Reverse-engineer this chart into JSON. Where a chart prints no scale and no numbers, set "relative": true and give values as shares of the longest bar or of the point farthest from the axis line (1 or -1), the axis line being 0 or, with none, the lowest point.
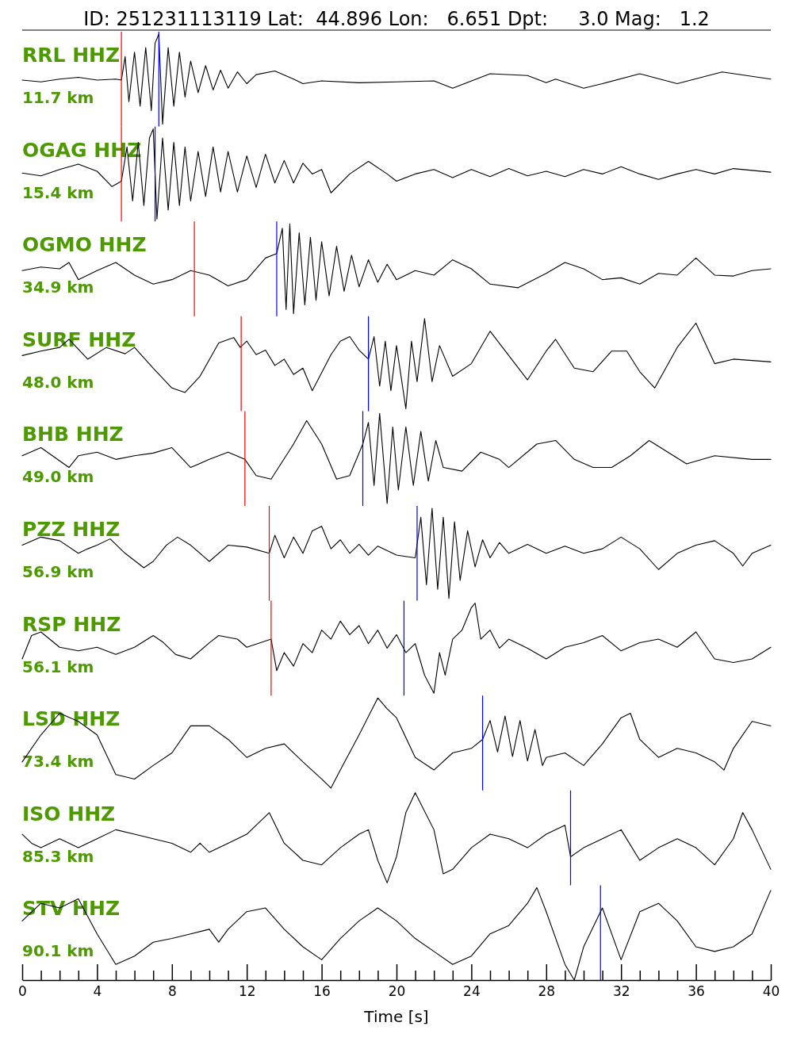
{
  "chart_data": [
    {
      "type": "line",
      "relative": true,
      "title": "RRL HHZ",
      "subtitle": "11.7 km",
      "annotations": [
        "ID: 251231113119 Lat:  44.896 Lon:   6.651 Dpt:     3.0 Mag:   1.2"
      ],
      "xlim": [
        0,
        40
      ],
      "tick_labels": false,
      "ref_lines": [
        {
          "axis": "x",
          "value": 5.3,
          "color": "#ff0000"
        },
        {
          "axis": "x",
          "value": 7.3,
          "color": "#0000ff"
        }
      ],
      "x": [
        0,
        1,
        2,
        3,
        4,
        5,
        5.3,
        5.5,
        5.7,
        6.0,
        6.3,
        6.6,
        6.9,
        7.1,
        7.3,
        7.5,
        7.8,
        8.1,
        8.4,
        8.7,
        9.0,
        9.4,
        9.8,
        10.2,
        10.6,
        11,
        11.5,
        12,
        12.5,
        13.5,
        14.5,
        15,
        16,
        18,
        20,
        22,
        23,
        25,
        27,
        28,
        28.5,
        30,
        31,
        33,
        35,
        37.4,
        40
      ],
      "series": [
        {
          "color": "#000000",
          "values": [
            0.49,
            0.47,
            0.5,
            0.52,
            0.49,
            0.5,
            0.49,
            0.75,
            0.25,
            0.8,
            0.2,
            0.85,
            0.15,
            0.9,
            1.0,
            0.0,
            0.85,
            0.2,
            0.8,
            0.3,
            0.7,
            0.35,
            0.65,
            0.38,
            0.6,
            0.4,
            0.58,
            0.45,
            0.55,
            0.59,
            0.5,
            0.45,
            0.48,
            0.46,
            0.47,
            0.48,
            0.4,
            0.56,
            0.54,
            0.46,
            0.5,
            0.4,
            0.45,
            0.56,
            0.45,
            0.58,
            0.5
          ]
        }
      ]
    },
    {
      "type": "line",
      "relative": true,
      "title": "OGAG HHZ",
      "subtitle": "15.4 km",
      "xlim": [
        0,
        40
      ],
      "tick_labels": false,
      "ref_lines": [
        {
          "axis": "x",
          "value": 5.3,
          "color": "#ff0000"
        },
        {
          "axis": "x",
          "value": 7.1,
          "color": "#0000ff"
        }
      ],
      "x": [
        0,
        1,
        2,
        3,
        4,
        4.8,
        5.3,
        5.6,
        5.9,
        6.2,
        6.5,
        6.8,
        7.0,
        7.2,
        7.5,
        7.8,
        8.1,
        8.4,
        8.7,
        9.0,
        9.4,
        9.8,
        10.2,
        10.6,
        11,
        11.5,
        12,
        12.5,
        13,
        13.5,
        14,
        14.5,
        15,
        15.5,
        16,
        16.5,
        17.5,
        18.5,
        19.5,
        20,
        21,
        22,
        23,
        24,
        25,
        26,
        27,
        28,
        29,
        30,
        31,
        32,
        33,
        34,
        35,
        36,
        37,
        38,
        39,
        40
      ],
      "series": [
        {
          "color": "#000000",
          "values": [
            0.51,
            0.48,
            0.55,
            0.61,
            0.53,
            0.36,
            0.42,
            0.8,
            0.2,
            0.85,
            0.15,
            0.9,
            1.0,
            0.0,
            0.9,
            0.1,
            0.85,
            0.15,
            0.8,
            0.2,
            0.75,
            0.25,
            0.8,
            0.3,
            0.75,
            0.3,
            0.7,
            0.35,
            0.72,
            0.4,
            0.65,
            0.4,
            0.62,
            0.5,
            0.55,
            0.29,
            0.5,
            0.64,
            0.5,
            0.42,
            0.5,
            0.55,
            0.46,
            0.55,
            0.47,
            0.56,
            0.48,
            0.53,
            0.47,
            0.55,
            0.5,
            0.58,
            0.5,
            0.44,
            0.5,
            0.55,
            0.5,
            0.56,
            0.54,
            0.52
          ]
        }
      ]
    },
    {
      "type": "line",
      "relative": true,
      "title": "OGMO HHZ",
      "subtitle": "34.9 km",
      "xlim": [
        0,
        40
      ],
      "tick_labels": false,
      "ref_lines": [
        {
          "axis": "x",
          "value": 9.2,
          "color": "#ff0000"
        },
        {
          "axis": "x",
          "value": 13.6,
          "color": "#0000ff"
        }
      ],
      "x": [
        0,
        1,
        2,
        2.5,
        3,
        4,
        5,
        6,
        7,
        8,
        9,
        10,
        11,
        12,
        13,
        13.6,
        13.9,
        14.1,
        14.3,
        14.5,
        14.8,
        15.1,
        15.4,
        15.7,
        16,
        16.4,
        16.8,
        17.2,
        17.6,
        18,
        18.5,
        19,
        19.5,
        20,
        21,
        22,
        23,
        24,
        25,
        26.5,
        28,
        29,
        30,
        31,
        32,
        33,
        34,
        35,
        36,
        37,
        38,
        39,
        40
      ],
      "series": [
        {
          "color": "#000000",
          "values": [
            0.48,
            0.52,
            0.5,
            0.57,
            0.38,
            0.48,
            0.57,
            0.43,
            0.33,
            0.38,
            0.48,
            0.43,
            0.31,
            0.38,
            0.62,
            0.67,
            0.95,
            0.05,
            1.0,
            0.0,
            0.9,
            0.1,
            0.85,
            0.15,
            0.8,
            0.2,
            0.75,
            0.25,
            0.65,
            0.3,
            0.6,
            0.35,
            0.55,
            0.38,
            0.48,
            0.43,
            0.6,
            0.5,
            0.33,
            0.29,
            0.45,
            0.57,
            0.5,
            0.38,
            0.4,
            0.33,
            0.45,
            0.43,
            0.62,
            0.43,
            0.42,
            0.48,
            0.5
          ]
        }
      ]
    },
    {
      "type": "line",
      "relative": true,
      "title": "SURF HHZ",
      "subtitle": "48.0 km",
      "xlim": [
        0,
        40
      ],
      "tick_labels": false,
      "ref_lines": [
        {
          "axis": "x",
          "value": 11.7,
          "color": "#ff0000"
        },
        {
          "axis": "x",
          "value": 18.5,
          "color": "#0000ff"
        }
      ],
      "x": [
        0,
        1,
        2,
        2.5,
        3.5,
        4.5,
        5.5,
        6,
        7,
        8,
        8.7,
        9.5,
        10.5,
        11.3,
        11.65,
        12,
        12.5,
        13,
        13.5,
        14,
        14.5,
        15,
        15.5,
        16,
        16.5,
        17,
        17.5,
        18,
        18.5,
        18.8,
        19.1,
        19.4,
        19.7,
        20,
        20.5,
        20.8,
        21.1,
        21.5,
        21.9,
        22.3,
        23,
        24,
        25,
        26,
        27,
        28,
        28.5,
        29.5,
        30.5,
        31.5,
        32.3,
        33,
        33.8,
        35,
        36,
        37,
        38,
        40
      ],
      "series": [
        {
          "color": "#000000",
          "values": [
            0.59,
            0.64,
            0.68,
            0.77,
            0.55,
            0.68,
            0.61,
            0.68,
            0.45,
            0.23,
            0.18,
            0.36,
            0.73,
            0.79,
            0.68,
            0.75,
            0.6,
            0.65,
            0.48,
            0.55,
            0.38,
            0.45,
            0.2,
            0.4,
            0.6,
            0.75,
            0.8,
            0.65,
            0.55,
            0.8,
            0.25,
            0.75,
            0.2,
            0.7,
            0.0,
            0.75,
            0.3,
            1.0,
            0.3,
            0.7,
            0.36,
            0.5,
            0.86,
            0.59,
            0.32,
            0.64,
            0.77,
            0.45,
            0.41,
            0.64,
            0.64,
            0.41,
            0.23,
            0.68,
            0.95,
            0.5,
            0.55,
            0.52
          ]
        }
      ]
    },
    {
      "type": "line",
      "relative": true,
      "title": "BHB HHZ",
      "subtitle": "49.0 km",
      "xlim": [
        0,
        40
      ],
      "tick_labels": false,
      "ref_lines": [
        {
          "axis": "x",
          "value": 11.9,
          "color": "#ff0000"
        },
        {
          "axis": "x",
          "value": 18.2,
          "color": "#0000ff"
        }
      ],
      "x": [
        0,
        1,
        2.5,
        3,
        4,
        5,
        6,
        7,
        8,
        9,
        10,
        11,
        11.9,
        12.5,
        13.3,
        14.5,
        15.2,
        16,
        16.8,
        17.5,
        18.2,
        18.5,
        18.8,
        19.1,
        19.5,
        19.8,
        20.1,
        20.5,
        20.9,
        21.3,
        21.7,
        22.1,
        22.5,
        23.5,
        24.5,
        25.5,
        26,
        27.5,
        28.5,
        29.5,
        30.5,
        31.5,
        32.5,
        33.5,
        34.5,
        35.5,
        37,
        39,
        40
      ],
      "series": [
        {
          "color": "#000000",
          "values": [
            0.53,
            0.62,
            0.4,
            0.53,
            0.57,
            0.49,
            0.53,
            0.56,
            0.62,
            0.4,
            0.49,
            0.57,
            0.49,
            0.31,
            0.27,
            0.66,
            0.92,
            0.66,
            0.27,
            0.31,
            0.66,
            0.9,
            0.2,
            1.0,
            0.0,
            0.85,
            0.15,
            0.85,
            0.2,
            0.8,
            0.25,
            0.7,
            0.4,
            0.36,
            0.57,
            0.49,
            0.4,
            0.66,
            0.7,
            0.49,
            0.4,
            0.4,
            0.53,
            0.7,
            0.57,
            0.44,
            0.53,
            0.49,
            0.49
          ]
        }
      ]
    },
    {
      "type": "line",
      "relative": true,
      "title": "PZZ HHZ",
      "subtitle": "56.9 km",
      "xlim": [
        0,
        40
      ],
      "tick_labels": false,
      "ref_lines": [
        {
          "axis": "x",
          "value": 13.2,
          "color": "#ff0000"
        },
        {
          "axis": "x",
          "value": 21.1,
          "color": "#0000ff"
        }
      ],
      "x": [
        0,
        1,
        2,
        3,
        3.5,
        4,
        4.7,
        5.5,
        6.5,
        7,
        7.7,
        8.3,
        9,
        10,
        11,
        12,
        13.2,
        13.5,
        14,
        14.5,
        15,
        15.5,
        16,
        16.5,
        17,
        17.5,
        18,
        18.5,
        19,
        20,
        21,
        21.3,
        21.6,
        21.9,
        22.2,
        22.5,
        22.8,
        23.1,
        23.4,
        23.8,
        24.2,
        24.6,
        25,
        25.5,
        26,
        27,
        28,
        29,
        30,
        31,
        32,
        33,
        34,
        35,
        36,
        37,
        38,
        38.5,
        39,
        40
      ],
      "series": [
        {
          "color": "#000000",
          "values": [
            0.59,
            0.68,
            0.64,
            0.5,
            0.55,
            0.59,
            0.66,
            0.5,
            0.34,
            0.41,
            0.59,
            0.68,
            0.59,
            0.41,
            0.59,
            0.57,
            0.5,
            0.7,
            0.45,
            0.68,
            0.5,
            0.75,
            0.8,
            0.55,
            0.65,
            0.5,
            0.6,
            0.48,
            0.58,
            0.48,
            0.45,
            0.9,
            0.15,
            1.0,
            0.1,
            0.9,
            0.0,
            0.85,
            0.2,
            0.75,
            0.35,
            0.65,
            0.45,
            0.62,
            0.5,
            0.6,
            0.5,
            0.58,
            0.5,
            0.55,
            0.68,
            0.55,
            0.32,
            0.5,
            0.59,
            0.64,
            0.5,
            0.36,
            0.5,
            0.59
          ]
        }
      ]
    },
    {
      "type": "line",
      "relative": true,
      "title": "RSP HHZ",
      "subtitle": "56.1 km",
      "xlim": [
        0,
        40
      ],
      "tick_labels": false,
      "ref_lines": [
        {
          "axis": "x",
          "value": 13.3,
          "color": "#ff0000"
        },
        {
          "axis": "x",
          "value": 20.4,
          "color": "#0000ff"
        }
      ],
      "x": [
        0,
        0.5,
        1,
        2,
        3,
        4,
        5,
        6,
        7,
        7.5,
        8.2,
        9,
        10,
        10.5,
        11.5,
        12,
        13.3,
        13.6,
        14,
        14.5,
        15,
        15.5,
        16,
        16.5,
        17,
        17.5,
        18,
        18.5,
        19,
        19.5,
        20,
        20.5,
        21,
        21.5,
        22,
        22.3,
        22.6,
        23,
        23.5,
        24,
        24.2,
        24.5,
        25,
        25.5,
        26,
        27,
        28,
        29,
        30,
        31,
        32,
        33,
        34,
        35,
        36,
        37,
        38,
        39,
        40
      ],
      "series": [
        {
          "color": "#000000",
          "values": [
            0.38,
            0.64,
            0.68,
            0.51,
            0.47,
            0.51,
            0.43,
            0.51,
            0.64,
            0.57,
            0.43,
            0.38,
            0.56,
            0.64,
            0.6,
            0.51,
            0.6,
            0.25,
            0.45,
            0.3,
            0.55,
            0.45,
            0.7,
            0.6,
            0.8,
            0.65,
            0.75,
            0.55,
            0.7,
            0.5,
            0.65,
            0.45,
            0.55,
            0.2,
            0.0,
            0.45,
            0.2,
            0.6,
            0.7,
            0.95,
            1.0,
            0.6,
            0.7,
            0.5,
            0.6,
            0.5,
            0.38,
            0.51,
            0.56,
            0.64,
            0.47,
            0.56,
            0.6,
            0.51,
            0.68,
            0.38,
            0.34,
            0.38,
            0.51
          ]
        }
      ]
    },
    {
      "type": "line",
      "relative": true,
      "title": "LSD HHZ",
      "subtitle": "73.4 km",
      "xlim": [
        0,
        40
      ],
      "tick_labels": false,
      "ref_lines": [
        {
          "axis": "x",
          "value": 24.6,
          "color": "#0000ff"
        }
      ],
      "x": [
        0,
        1,
        2,
        3,
        4,
        5,
        6,
        7,
        8,
        9,
        10,
        11,
        12,
        13,
        14,
        15,
        16,
        16.5,
        17,
        18,
        19,
        19.5,
        20,
        21,
        22,
        23,
        24,
        24.6,
        25,
        25.4,
        25.8,
        26.2,
        26.6,
        27,
        27.4,
        27.8,
        28,
        29,
        30,
        31,
        32,
        32.5,
        33,
        34,
        35,
        36,
        37,
        37.5,
        38,
        39,
        40
      ],
      "series": [
        {
          "color": "#000000",
          "values": [
            0.29,
            0.59,
            0.83,
            0.74,
            0.59,
            0.15,
            0.1,
            0.25,
            0.39,
            0.69,
            0.69,
            0.54,
            0.34,
            0.44,
            0.49,
            0.29,
            0.1,
            0.0,
            0.2,
            0.59,
            1.0,
            0.88,
            0.78,
            0.34,
            0.2,
            0.39,
            0.44,
            0.54,
            0.75,
            0.4,
            0.8,
            0.35,
            0.75,
            0.3,
            0.65,
            0.25,
            0.34,
            0.39,
            0.25,
            0.49,
            0.78,
            0.83,
            0.54,
            0.34,
            0.44,
            0.39,
            0.29,
            0.2,
            0.44,
            0.74,
            0.69
          ]
        }
      ]
    },
    {
      "type": "line",
      "relative": true,
      "title": "ISO HHZ",
      "subtitle": "85.3 km",
      "xlim": [
        0,
        40
      ],
      "tick_labels": false,
      "ref_lines": [
        {
          "axis": "x",
          "value": 29.3,
          "color": "#0000ff"
        }
      ],
      "x": [
        0,
        0.5,
        1,
        2,
        3,
        4,
        5,
        6,
        7,
        8,
        9,
        9.5,
        10,
        11,
        12,
        13.2,
        14,
        15,
        16,
        17,
        18,
        18.5,
        19,
        19.5,
        20,
        20.5,
        21,
        22,
        22.5,
        23,
        24,
        25,
        26,
        27,
        28,
        29,
        29.3,
        30,
        31,
        32,
        33,
        34,
        35,
        36,
        37,
        38,
        38.5,
        39,
        40
      ],
      "series": [
        {
          "color": "#000000",
          "values": [
            0.54,
            0.44,
            0.39,
            0.49,
            0.39,
            0.49,
            0.59,
            0.54,
            0.49,
            0.44,
            0.34,
            0.44,
            0.34,
            0.44,
            0.54,
            0.78,
            0.44,
            0.25,
            0.2,
            0.39,
            0.54,
            0.59,
            0.25,
            0.0,
            0.29,
            0.78,
            1.0,
            0.59,
            0.1,
            0.15,
            0.39,
            0.54,
            0.49,
            0.39,
            0.54,
            0.64,
            0.29,
            0.39,
            0.49,
            0.59,
            0.25,
            0.39,
            0.49,
            0.39,
            0.2,
            0.49,
            0.78,
            0.59,
            0.15
          ]
        }
      ]
    },
    {
      "type": "line",
      "relative": true,
      "title": "STV HHZ",
      "subtitle": "90.1 km",
      "xlabel": "Time [s]",
      "xlim": [
        0,
        40
      ],
      "tick_labels": "x",
      "xticks": [
        0,
        {
          "value": 1,
          "label": null
        },
        {
          "value": 2,
          "label": null
        },
        {
          "value": 3,
          "label": null
        },
        4,
        {
          "value": 5,
          "label": null
        },
        {
          "value": 6,
          "label": null
        },
        {
          "value": 7,
          "label": null
        },
        8,
        {
          "value": 9,
          "label": null
        },
        {
          "value": 10,
          "label": null
        },
        {
          "value": 11,
          "label": null
        },
        12,
        {
          "value": 13,
          "label": null
        },
        {
          "value": 14,
          "label": null
        },
        {
          "value": 15,
          "label": null
        },
        16,
        {
          "value": 17,
          "label": null
        },
        {
          "value": 18,
          "label": null
        },
        {
          "value": 19,
          "label": null
        },
        20,
        {
          "value": 21,
          "label": null
        },
        {
          "value": 22,
          "label": null
        },
        {
          "value": 23,
          "label": null
        },
        24,
        {
          "value": 25,
          "label": null
        },
        {
          "value": 26,
          "label": null
        },
        {
          "value": 27,
          "label": null
        },
        28,
        {
          "value": 29,
          "label": null
        },
        {
          "value": 30,
          "label": null
        },
        {
          "value": 31,
          "label": null
        },
        32,
        {
          "value": 33,
          "label": null
        },
        {
          "value": 34,
          "label": null
        },
        {
          "value": 35,
          "label": null
        },
        36,
        {
          "value": 37,
          "label": null
        },
        {
          "value": 38,
          "label": null
        },
        {
          "value": 39,
          "label": null
        },
        40
      ],
      "ref_lines": [
        {
          "axis": "x",
          "value": 30.9,
          "color": "#0000ff"
        }
      ],
      "x": [
        0,
        1,
        2,
        3,
        4,
        5,
        6,
        7,
        8,
        9,
        10,
        10.5,
        11,
        12,
        13,
        14,
        15,
        16,
        17,
        18,
        19,
        20,
        21,
        22,
        23,
        24,
        25,
        26,
        27,
        27.5,
        28,
        29,
        29.5,
        30,
        31,
        32,
        33,
        34,
        35,
        36,
        37,
        38,
        39,
        40
      ],
      "series": [
        {
          "color": "#000000",
          "values": [
            0.64,
            0.83,
            0.78,
            0.88,
            0.5,
            0.17,
            0.26,
            0.41,
            0.45,
            0.5,
            0.55,
            0.41,
            0.55,
            0.74,
            0.78,
            0.55,
            0.36,
            0.22,
            0.45,
            0.64,
            0.78,
            0.64,
            0.45,
            0.31,
            0.17,
            0.26,
            0.5,
            0.59,
            0.83,
            1.0,
            0.74,
            0.17,
            0.0,
            0.36,
            0.78,
            0.22,
            0.74,
            0.83,
            0.64,
            0.36,
            0.31,
            0.36,
            0.5,
            0.97
          ]
        }
      ]
    }
  ]
}
